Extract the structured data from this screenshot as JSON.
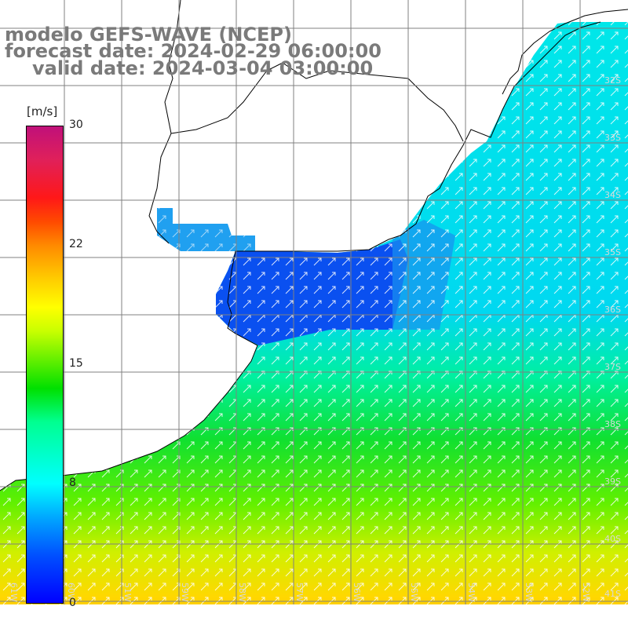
{
  "title": {
    "line1": "modelo GEFS-WAVE (NCEP)",
    "line2": "forecast date: 2024-02-29 06:00:00",
    "line3": "valid date: 2024-03-04 03:00:00"
  },
  "legend": {
    "unit": "[m/s]",
    "ticks": [
      {
        "label": "30",
        "value": 30
      },
      {
        "label": "22",
        "value": 22
      },
      {
        "label": "15",
        "value": 15
      },
      {
        "label": "8",
        "value": 8
      },
      {
        "label": "0",
        "value": 0
      }
    ]
  },
  "lat_labels": [
    "32S",
    "33S",
    "34S",
    "35S",
    "36S",
    "37S",
    "38S",
    "39S",
    "40S",
    "41S"
  ],
  "lon_labels": [
    "61W",
    "60W",
    "59W",
    "58W",
    "57W",
    "56W",
    "55W",
    "54W",
    "53W",
    "52W",
    "51W"
  ],
  "colors": {
    "calm": "#0050ff",
    "moderate": "#00ffff",
    "fresh": "#00e000",
    "strong": "#ffcc00",
    "land": "#ffffff",
    "grid": "#808080",
    "coast": "#000000",
    "arrows": "#ffffff"
  }
}
